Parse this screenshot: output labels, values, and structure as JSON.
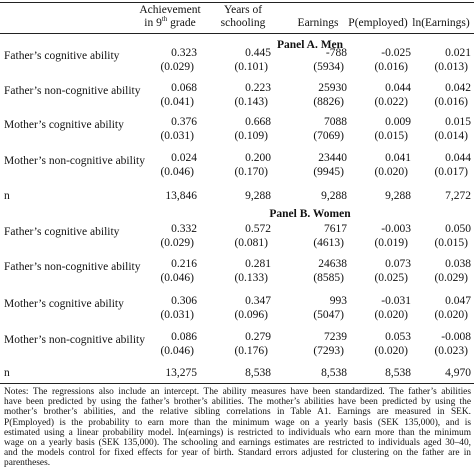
{
  "header": {
    "columns": [
      [
        "Achievement",
        {
          "text": "in 9",
          "sup": "th",
          "tail": " grade"
        }
      ],
      [
        "Years of",
        "schooling"
      ],
      [
        "Earnings"
      ],
      [
        "P(employed)"
      ],
      [
        "ln(Earnings)"
      ]
    ]
  },
  "panels": [
    {
      "title": "Panel A. Men",
      "rows": [
        {
          "label": "Father’s cognitive ability",
          "estimates": [
            "0.323",
            "0.445",
            "-788",
            "-0.025",
            "0.021"
          ],
          "std_errors": [
            "(0.029)",
            "(0.101)",
            "(5934)",
            "(0.016)",
            "(0.013)"
          ]
        },
        {
          "label": "Father’s non-cognitive ability",
          "estimates": [
            "0.068",
            "0.223",
            "25930",
            "0.044",
            "0.042"
          ],
          "std_errors": [
            "(0.041)",
            "(0.143)",
            "(8826)",
            "(0.022)",
            "(0.016)"
          ]
        },
        {
          "label": "Mother’s cognitive ability",
          "estimates": [
            "0.376",
            "0.668",
            "7088",
            "0.009",
            "0.015"
          ],
          "std_errors": [
            "(0.031)",
            "(0.109)",
            "(7069)",
            "(0.015)",
            "(0.014)"
          ]
        },
        {
          "label": "Mother’s non-cognitive ability",
          "estimates": [
            "0.024",
            "0.200",
            "23440",
            "0.041",
            "0.044"
          ],
          "std_errors": [
            "(0.046)",
            "(0.170)",
            "(9945)",
            "(0.020)",
            "(0.017)"
          ]
        }
      ],
      "n": {
        "label": "n",
        "values": [
          "13,846",
          "9,288",
          "9,288",
          "9,288",
          "7,272"
        ]
      }
    },
    {
      "title": "Panel B. Women",
      "rows": [
        {
          "label": "Father’s cognitive ability",
          "estimates": [
            "0.332",
            "0.572",
            "7617",
            "-0.003",
            "0.050"
          ],
          "std_errors": [
            "(0.029)",
            "(0.081)",
            "(4613)",
            "(0.019)",
            "(0.015)"
          ]
        },
        {
          "label": "Father’s non-cognitive ability",
          "estimates": [
            "0.216",
            "0.281",
            "24638",
            "0.073",
            "0.038"
          ],
          "std_errors": [
            "(0.046)",
            "(0.133)",
            "(8585)",
            "(0.025)",
            "(0.029)"
          ]
        },
        {
          "label": "Mother’s cognitive ability",
          "estimates": [
            "0.306",
            "0.347",
            "993",
            "-0.031",
            "0.047"
          ],
          "std_errors": [
            "(0.031)",
            "(0.096)",
            "(5047)",
            "(0.020)",
            "(0.020)"
          ]
        },
        {
          "label": "Mother’s non-cognitive ability",
          "estimates": [
            "0.086",
            "0.279",
            "7239",
            "0.053",
            "-0.008"
          ],
          "std_errors": [
            "(0.046)",
            "(0.176)",
            "(7293)",
            "(0.020)",
            "(0.023)"
          ]
        }
      ],
      "n": {
        "label": "n",
        "values": [
          "13,275",
          "8,538",
          "8,538",
          "8,538",
          "4,970"
        ]
      }
    }
  ],
  "notes": [
    "Notes: The regressions also include an intercept. The ability measures have been standardized. The father’s abilities",
    "have been predicted by using the father’s brother’s abilities. The mother’s abilities have been predicted by using the",
    "mother’s brother’s abilities, and the relative sibling correlations in Table A1. Earnings are measured in SEK.",
    "P(Employed) is the probability to earn more than the minimum wage on a yearly basis (SEK 135,000), and is",
    "estimated using a linear probability model. ln(earnings) is restricted to individuals who earn more than the minimum",
    "wage on a yearly basis (SEK 135,000). The schooling and earnings estimates are restricted to individuals aged 30–40,",
    "and the models control for fixed effects for year of birth. Standard errors adjusted for clustering on the father are in",
    "parentheses."
  ]
}
